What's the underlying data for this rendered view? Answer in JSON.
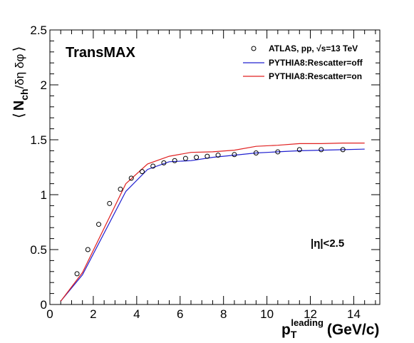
{
  "chart_data": {
    "type": "line",
    "title": "",
    "annotation": "TransMAX",
    "cut_label": "|η|<2.5",
    "xlabel": {
      "main": "p",
      "sub": "T",
      "sup": "leading",
      "unit": "(GeV/c)"
    },
    "ylabel": {
      "open": "⟨",
      "main": "N",
      "sub": "ch",
      "tail": "/δη δφ",
      "close": "⟩"
    },
    "xlim": [
      0,
      15.2
    ],
    "ylim": [
      0,
      2.5
    ],
    "x_ticks": [
      0,
      2,
      4,
      6,
      8,
      10,
      12,
      14
    ],
    "x_tick_labels": [
      "0",
      "2",
      "4",
      "6",
      "8",
      "10",
      "12",
      "14"
    ],
    "y_ticks": [
      0,
      0.5,
      1,
      1.5,
      2,
      2.5
    ],
    "y_tick_labels": [
      "0",
      "0.5",
      "1",
      "1.5",
      "2",
      "2.5"
    ],
    "grid": false,
    "legend_position": "top-right",
    "series": [
      {
        "name": "ATLAS, pp, √s=13 TeV",
        "kind": "points",
        "color": "#000000",
        "x": [
          1.25,
          1.75,
          2.25,
          2.75,
          3.25,
          3.75,
          4.25,
          4.75,
          5.25,
          5.75,
          6.25,
          6.75,
          7.25,
          7.75,
          8.5,
          9.5,
          10.5,
          11.5,
          12.5,
          13.5
        ],
        "y": [
          0.28,
          0.5,
          0.73,
          0.92,
          1.05,
          1.15,
          1.21,
          1.26,
          1.29,
          1.31,
          1.33,
          1.34,
          1.35,
          1.36,
          1.365,
          1.38,
          1.39,
          1.41,
          1.41,
          1.41
        ]
      },
      {
        "name": "PYTHIA8:Rescatter=off",
        "kind": "line",
        "color": "#2020d0",
        "x": [
          0.5,
          1.5,
          3.5,
          4.5,
          5.5,
          6.5,
          7.5,
          8.5,
          9.5,
          10.5,
          11.5,
          12.5,
          13.5,
          14.5
        ],
        "y": [
          0.03,
          0.27,
          1.03,
          1.23,
          1.3,
          1.31,
          1.34,
          1.36,
          1.38,
          1.39,
          1.4,
          1.405,
          1.41,
          1.415
        ]
      },
      {
        "name": "PYTHIA8:Rescatter=on",
        "kind": "line",
        "color": "#e02020",
        "x": [
          0.5,
          1.5,
          3.5,
          4.5,
          5.5,
          6.5,
          7.5,
          8.5,
          9.5,
          10.5,
          11.5,
          12.5,
          13.5,
          14.5
        ],
        "y": [
          0.03,
          0.29,
          1.1,
          1.28,
          1.35,
          1.385,
          1.39,
          1.405,
          1.44,
          1.45,
          1.465,
          1.465,
          1.47,
          1.47
        ]
      }
    ]
  }
}
